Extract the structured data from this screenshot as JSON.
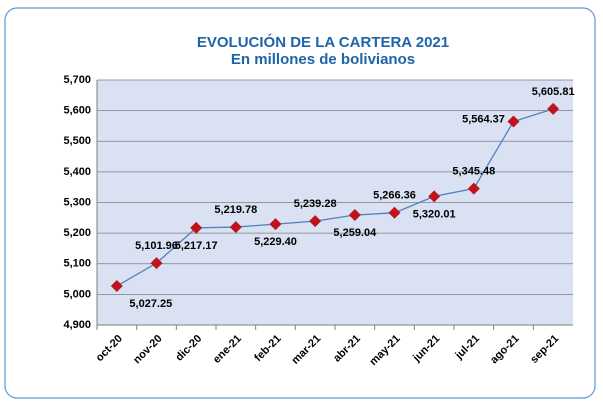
{
  "chart_data": {
    "type": "line",
    "title": "EVOLUCIÓN DE LA CARTERA 2021",
    "subtitle": "En millones de bolivianos",
    "categories": [
      "oct-20",
      "nov-20",
      "dic-20",
      "ene-21",
      "feb-21",
      "mar-21",
      "abr-21",
      "may-21",
      "jun-21",
      "jul-21",
      "ago-21",
      "sep-21"
    ],
    "values": [
      5027.25,
      5101.96,
      5217.17,
      5219.78,
      5229.4,
      5239.28,
      5259.04,
      5266.36,
      5320.01,
      5345.48,
      5564.37,
      5605.81
    ],
    "value_labels": [
      "5,027.25",
      "5,101.96",
      "5,217.17",
      "5,219.78",
      "5,229.40",
      "5,239.28",
      "5,259.04",
      "5,266.36",
      "5,320.01",
      "5,345.48",
      "5,564.37",
      "5,605.81"
    ],
    "color": "#4f81bd",
    "marker_color": "#c0141c",
    "ylim": [
      4900,
      5700
    ],
    "yticks": [
      {
        "value": 4900,
        "label": "4,900"
      },
      {
        "value": 5000,
        "label": "5,000"
      },
      {
        "value": 5100,
        "label": "5,100"
      },
      {
        "value": 5200,
        "label": "5,200"
      },
      {
        "value": 5300,
        "label": "5,300"
      },
      {
        "value": 5400,
        "label": "5,400"
      },
      {
        "value": 5500,
        "label": "5,500"
      },
      {
        "value": 5600,
        "label": "5,600"
      },
      {
        "value": 5700,
        "label": "5,700"
      }
    ],
    "grid": true
  }
}
